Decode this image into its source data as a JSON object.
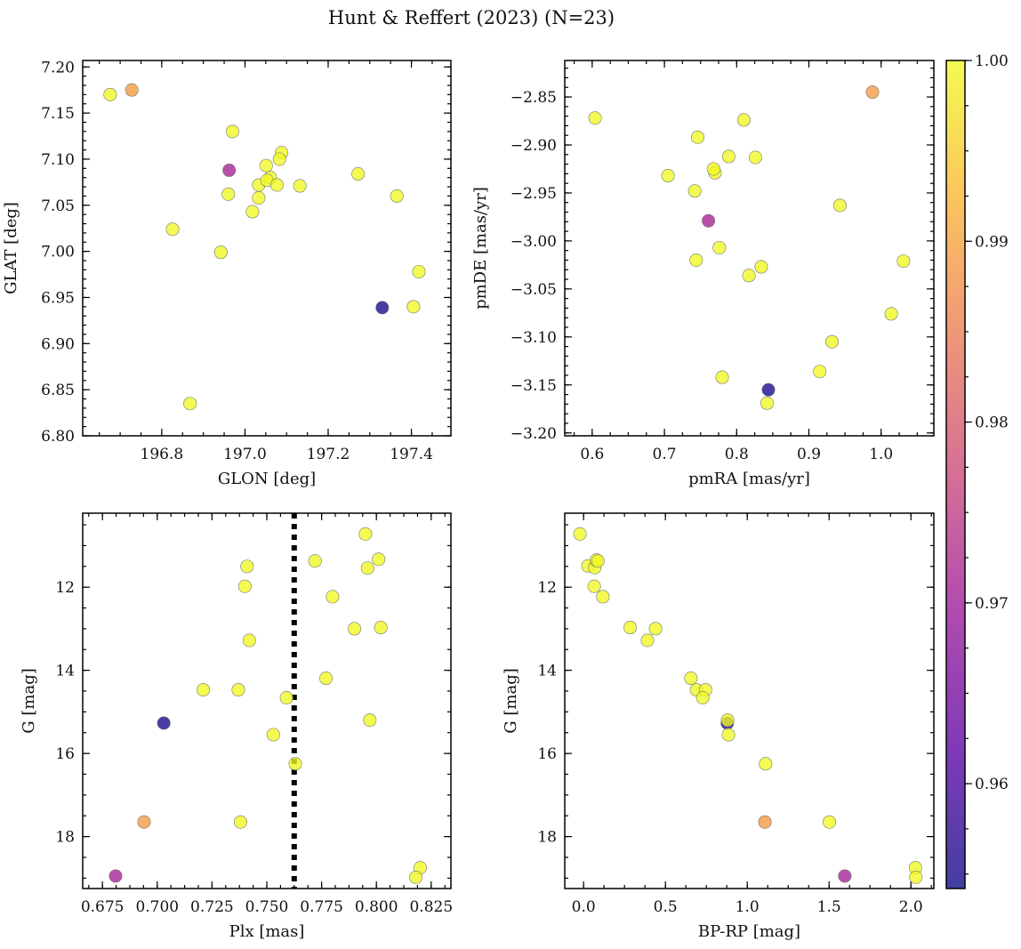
{
  "figure_title": "Hunt & Reffert (2023) (N=23)",
  "colorbar": {
    "min": 0.9542,
    "max": 1.0,
    "ticks": [
      0.96,
      0.97,
      0.98,
      0.99,
      1.0
    ],
    "tick_labels": [
      "0.96",
      "0.97",
      "0.98",
      "0.99",
      "1.00"
    ],
    "colormap": [
      "#0d0887",
      "#5b02a3",
      "#9a179b",
      "#cb4678",
      "#eb7852",
      "#fbb32f",
      "#f0f921"
    ]
  },
  "chart_data": [
    {
      "type": "scatter",
      "id": "glon_glat",
      "xlabel": "GLON [deg]",
      "ylabel": "GLAT [deg]",
      "xlim": [
        196.61,
        197.495
      ],
      "ylim": [
        6.8,
        7.207
      ],
      "xticks": [
        196.8,
        197.0,
        197.2,
        197.4
      ],
      "xtick_labels": [
        "196.8",
        "197.0",
        "197.2",
        "197.4"
      ],
      "yticks": [
        6.8,
        6.85,
        6.9,
        6.95,
        7.0,
        7.05,
        7.1,
        7.15,
        7.2
      ],
      "ytick_labels": [
        "6.80",
        "6.85",
        "6.90",
        "6.95",
        "7.00",
        "7.05",
        "7.10",
        "7.15",
        "7.20"
      ],
      "invert_y": false,
      "x": [
        196.676,
        196.728,
        196.97,
        196.962,
        196.96,
        197.088,
        197.051,
        197.083,
        197.061,
        197.033,
        197.053,
        197.077,
        197.033,
        197.018,
        197.132,
        197.272,
        197.365,
        196.826,
        196.942,
        197.418,
        197.405,
        197.33,
        196.868
      ],
      "y": [
        7.17,
        7.175,
        7.13,
        7.088,
        7.062,
        7.107,
        7.093,
        7.1,
        7.08,
        7.072,
        7.077,
        7.072,
        7.058,
        7.043,
        7.071,
        7.084,
        7.06,
        7.024,
        6.999,
        6.978,
        6.94,
        6.939,
        6.835
      ],
      "c": [
        1.0,
        0.989,
        1.0,
        0.971,
        1.0,
        1.0,
        1.0,
        1.0,
        1.0,
        1.0,
        1.0,
        1.0,
        1.0,
        1.0,
        1.0,
        1.0,
        1.0,
        1.0,
        1.0,
        1.0,
        1.0,
        0.955,
        1.0
      ]
    },
    {
      "type": "scatter",
      "id": "pm",
      "xlabel": "pmRA [mas/yr]",
      "ylabel": "pmDE [mas/yr]",
      "xlim": [
        0.562,
        1.073
      ],
      "ylim": [
        -3.203,
        -2.812
      ],
      "xticks": [
        0.6,
        0.7,
        0.8,
        0.9,
        1.0
      ],
      "xtick_labels": [
        "0.6",
        "0.7",
        "0.8",
        "0.9",
        "1.0"
      ],
      "yticks": [
        -3.2,
        -3.15,
        -3.1,
        -3.05,
        -3.0,
        -2.95,
        -2.9,
        -2.85
      ],
      "ytick_labels": [
        "−3.20",
        "−3.15",
        "−3.10",
        "−3.05",
        "−3.00",
        "−2.95",
        "−2.90",
        "−2.85"
      ],
      "invert_y": false,
      "x": [
        0.604,
        0.988,
        0.81,
        0.746,
        0.789,
        0.826,
        0.705,
        0.77,
        0.768,
        0.742,
        0.943,
        0.761,
        0.776,
        0.744,
        0.834,
        0.817,
        1.031,
        1.014,
        0.932,
        0.915,
        0.78,
        0.844,
        0.842
      ],
      "y": [
        -2.872,
        -2.845,
        -2.874,
        -2.892,
        -2.912,
        -2.913,
        -2.932,
        -2.929,
        -2.925,
        -2.948,
        -2.963,
        -2.979,
        -3.007,
        -3.02,
        -3.027,
        -3.036,
        -3.021,
        -3.076,
        -3.105,
        -3.136,
        -3.142,
        -3.155,
        -3.169
      ],
      "c": [
        1.0,
        0.989,
        1.0,
        1.0,
        1.0,
        1.0,
        1.0,
        1.0,
        1.0,
        1.0,
        1.0,
        0.971,
        1.0,
        1.0,
        1.0,
        1.0,
        1.0,
        1.0,
        1.0,
        1.0,
        1.0,
        0.955,
        1.0
      ]
    },
    {
      "type": "scatter",
      "id": "plx_g",
      "xlabel": "Plx [mas]",
      "ylabel": "G [mag]",
      "xlim": [
        0.666,
        0.834
      ],
      "ylim": [
        10.22,
        19.25
      ],
      "xticks": [
        0.675,
        0.7,
        0.725,
        0.75,
        0.775,
        0.8,
        0.825
      ],
      "xtick_labels": [
        "0.675",
        "0.700",
        "0.725",
        "0.750",
        "0.775",
        "0.800",
        "0.825"
      ],
      "yticks": [
        12,
        14,
        16,
        18
      ],
      "ytick_labels": [
        "12",
        "14",
        "16",
        "18"
      ],
      "invert_y": true,
      "vline": 0.7625,
      "x": [
        0.795,
        0.741,
        0.772,
        0.801,
        0.796,
        0.74,
        0.78,
        0.742,
        0.79,
        0.802,
        0.721,
        0.737,
        0.777,
        0.759,
        0.797,
        0.703,
        0.753,
        0.763,
        0.694,
        0.738,
        0.681,
        0.82,
        0.818
      ],
      "y": [
        10.72,
        11.5,
        11.37,
        11.33,
        11.54,
        11.98,
        12.23,
        13.28,
        13.0,
        12.97,
        14.47,
        14.47,
        14.19,
        14.66,
        15.2,
        15.27,
        15.55,
        16.25,
        17.65,
        17.65,
        18.95,
        18.75,
        18.98
      ],
      "c": [
        1.0,
        1.0,
        1.0,
        1.0,
        1.0,
        1.0,
        1.0,
        1.0,
        1.0,
        1.0,
        1.0,
        1.0,
        1.0,
        1.0,
        1.0,
        0.955,
        1.0,
        1.0,
        0.989,
        1.0,
        0.971,
        1.0,
        1.0
      ]
    },
    {
      "type": "scatter",
      "id": "cmd",
      "xlabel": "BP-RP [mag]",
      "ylabel": "G [mag]",
      "xlim": [
        -0.115,
        2.14
      ],
      "ylim": [
        10.22,
        19.25
      ],
      "xticks": [
        0.0,
        0.5,
        1.0,
        1.5,
        2.0
      ],
      "xtick_labels": [
        "0.0",
        "0.5",
        "1.0",
        "1.5",
        "2.0"
      ],
      "yticks": [
        12,
        14,
        16,
        18
      ],
      "ytick_labels": [
        "12",
        "14",
        "16",
        "18"
      ],
      "invert_y": true,
      "x": [
        -0.022,
        0.027,
        0.068,
        0.078,
        0.088,
        0.065,
        0.118,
        0.285,
        0.44,
        0.39,
        0.656,
        0.69,
        0.745,
        0.728,
        0.878,
        0.88,
        0.885,
        1.112,
        1.108,
        1.502,
        1.596,
        2.028,
        2.03
      ],
      "y": [
        10.72,
        11.49,
        11.53,
        11.35,
        11.37,
        11.98,
        12.23,
        12.97,
        13.0,
        13.28,
        14.19,
        14.47,
        14.47,
        14.66,
        15.27,
        15.2,
        15.55,
        16.25,
        17.65,
        17.65,
        18.95,
        18.75,
        18.98
      ],
      "c": [
        1.0,
        1.0,
        1.0,
        1.0,
        1.0,
        1.0,
        1.0,
        1.0,
        1.0,
        1.0,
        1.0,
        1.0,
        1.0,
        1.0,
        0.955,
        1.0,
        1.0,
        1.0,
        0.989,
        1.0,
        0.971,
        1.0,
        1.0
      ]
    }
  ]
}
